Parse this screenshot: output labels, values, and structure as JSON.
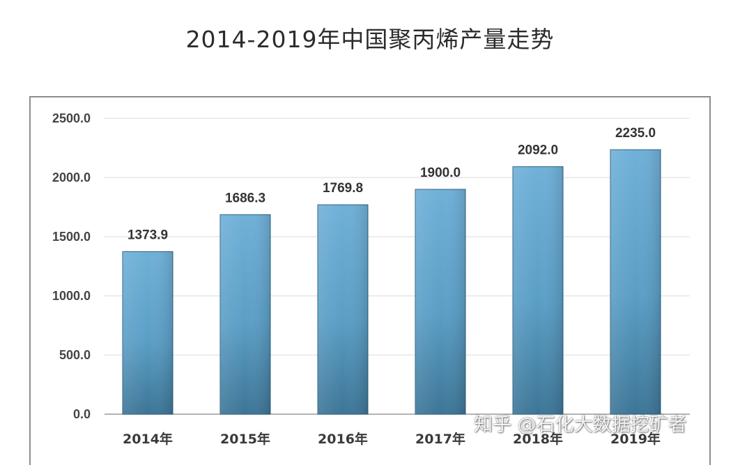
{
  "title": "2014-2019年中国聚丙烯产量走势",
  "watermark": "知乎 @石化大数据挖矿者",
  "chart_data": {
    "type": "bar",
    "title": "2014-2019年中国聚丙烯产量走势",
    "categories": [
      "2014年",
      "2015年",
      "2016年",
      "2017年",
      "2018年",
      "2019年"
    ],
    "values": [
      1373.9,
      1686.3,
      1769.8,
      1900.0,
      2092.0,
      2235.0
    ],
    "value_labels": [
      "1373.9",
      "1686.3",
      "1769.8",
      "1900.0",
      "2092.0",
      "2235.0"
    ],
    "ylim": [
      0,
      2500
    ],
    "yticks": [
      0,
      500,
      1000,
      1500,
      2000,
      2500
    ],
    "ytick_labels": [
      "0.0",
      "500.0",
      "1000.0",
      "1500.0",
      "2000.0",
      "2500.0"
    ],
    "grid": true,
    "legend": "none",
    "bar_color": "#5a9ec6"
  }
}
